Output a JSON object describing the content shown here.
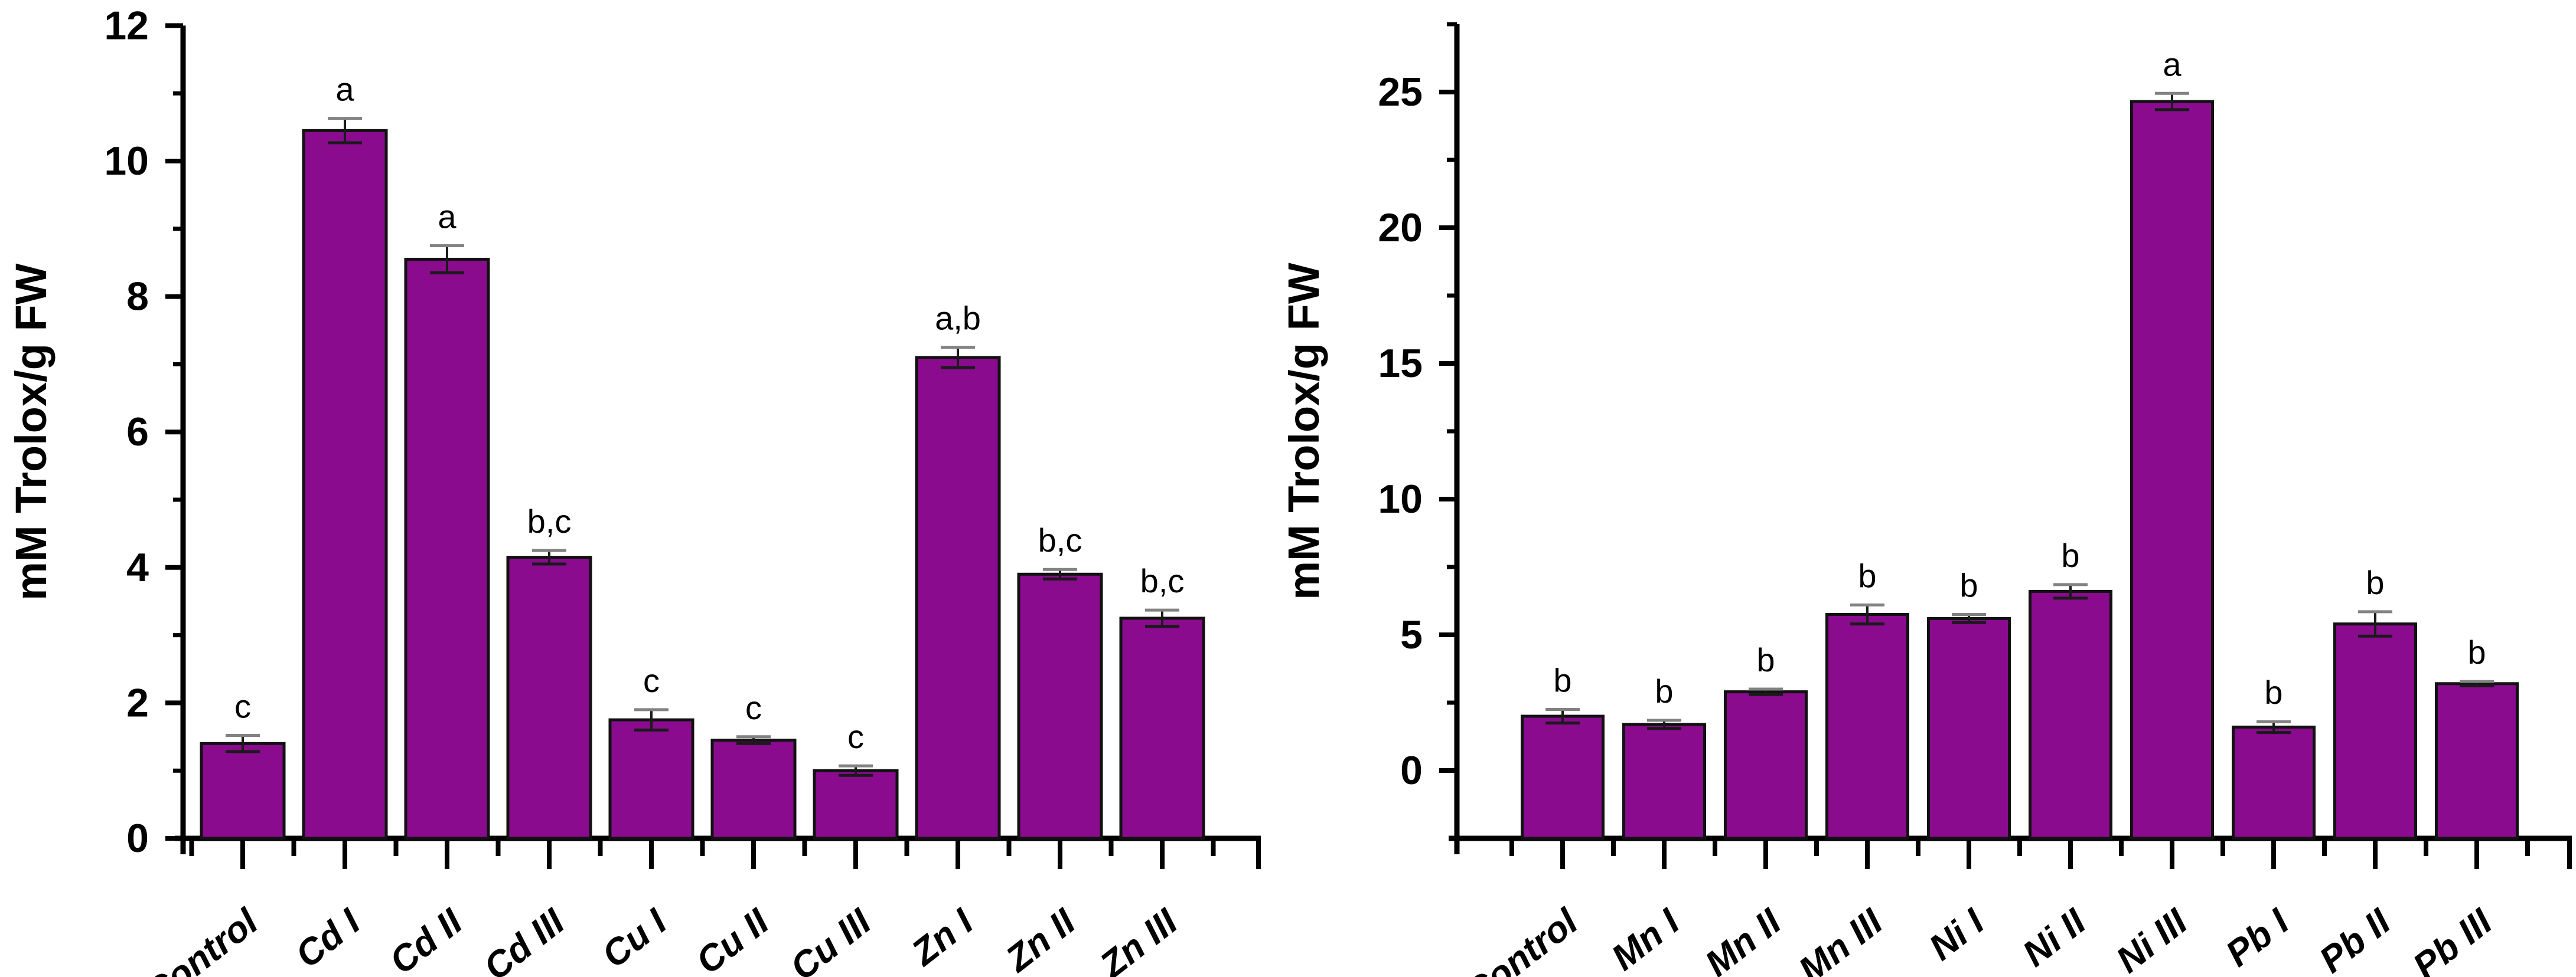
{
  "figure": {
    "background": "#ffffff",
    "bar_fill": "#8a0b8e",
    "bar_stroke": "#111111",
    "axis_color": "#000000",
    "error_bar_color": "#1a1a1a",
    "error_cap_top_color": "#828282"
  },
  "chart_data": [
    {
      "type": "bar",
      "panel": "left",
      "title": "",
      "xlabel": "",
      "ylabel": "mM Trolox/g FW",
      "ylim": [
        0,
        12
      ],
      "baseline": 0,
      "grid": false,
      "legend": false,
      "yticks_major": [
        0,
        2,
        4,
        6,
        8,
        10,
        12
      ],
      "yticks_minor": [
        1,
        3,
        5,
        7,
        9,
        11
      ],
      "categories": [
        "Control",
        "Cd I",
        "Cd II",
        "Cd III",
        "Cu I",
        "Cu II",
        "Cu III",
        "Zn I",
        "Zn II",
        "Zn III"
      ],
      "values": [
        1.4,
        10.45,
        8.55,
        4.15,
        1.75,
        1.45,
        1.0,
        7.1,
        3.9,
        3.25
      ],
      "errors": [
        0.12,
        0.18,
        0.2,
        0.1,
        0.15,
        0.05,
        0.07,
        0.15,
        0.07,
        0.12
      ],
      "sig_letters": [
        "c",
        "a",
        "a",
        "b,c",
        "c",
        "c",
        "c",
        "a,b",
        "b,c",
        "b,c"
      ]
    },
    {
      "type": "bar",
      "panel": "right",
      "title": "",
      "xlabel": "",
      "ylabel": "mM Trolox/g FW",
      "ylim": [
        -2.5,
        27.5
      ],
      "baseline": -2.5,
      "grid": false,
      "legend": false,
      "yticks_major": [
        0,
        5,
        10,
        15,
        20,
        25
      ],
      "yticks_minor": [
        2.5,
        7.5,
        12.5,
        17.5,
        22.5,
        27.5
      ],
      "categories": [
        "Control",
        "Mn I",
        "Mn II",
        "Mn III",
        "Ni I",
        "Ni II",
        "Ni III",
        "Pb I",
        "Pb II",
        "Pb III"
      ],
      "values": [
        2.0,
        1.7,
        2.9,
        5.75,
        5.6,
        6.6,
        24.65,
        1.6,
        5.4,
        3.2
      ],
      "errors": [
        0.25,
        0.15,
        0.1,
        0.35,
        0.15,
        0.25,
        0.3,
        0.2,
        0.45,
        0.08
      ],
      "sig_letters": [
        "b",
        "b",
        "b",
        "b",
        "b",
        "b",
        "a",
        "b",
        "b",
        "b"
      ]
    }
  ]
}
